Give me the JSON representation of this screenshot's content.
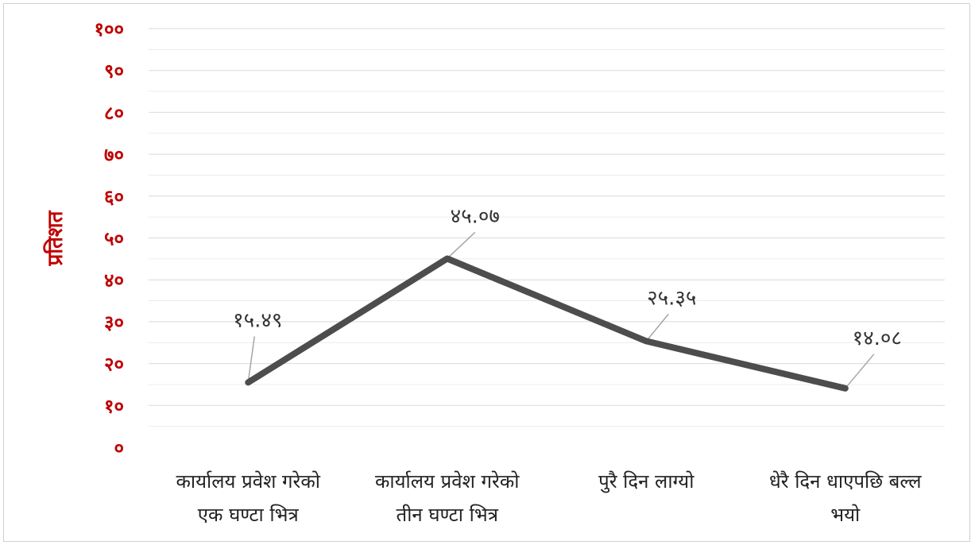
{
  "chart_data": {
    "type": "line",
    "categories": [
      [
        "कार्यालय प्रवेश गरेको",
        "एक घण्टा भित्र"
      ],
      [
        "कार्यालय प्रवेश गरेको",
        "तीन घण्टा भित्र"
      ],
      [
        "पुरै दिन लाग्यो"
      ],
      [
        "धेरै दिन धाएपछि बल्ल",
        "भयो"
      ]
    ],
    "series": [
      {
        "values": [
          15.49,
          45.07,
          25.35,
          14.08
        ],
        "data_labels": [
          "१५.४९",
          "४५.०७",
          "२५.३५",
          "१४.०८"
        ]
      }
    ],
    "ylabel": "प्रतिशत",
    "ylim": [
      0,
      100
    ],
    "yticks": [
      0,
      10,
      20,
      30,
      40,
      50,
      60,
      70,
      80,
      90,
      100
    ],
    "ytick_labels": [
      "०",
      "१०",
      "२०",
      "३०",
      "४०",
      "५०",
      "६०",
      "७०",
      "८०",
      "९०",
      "१००"
    ],
    "grid": true,
    "legend": "none",
    "colors": {
      "line": "#4d4d4d",
      "axis_text": "#c00000",
      "leader": "#a6a6a6",
      "grid": "#d9d9d9"
    }
  }
}
